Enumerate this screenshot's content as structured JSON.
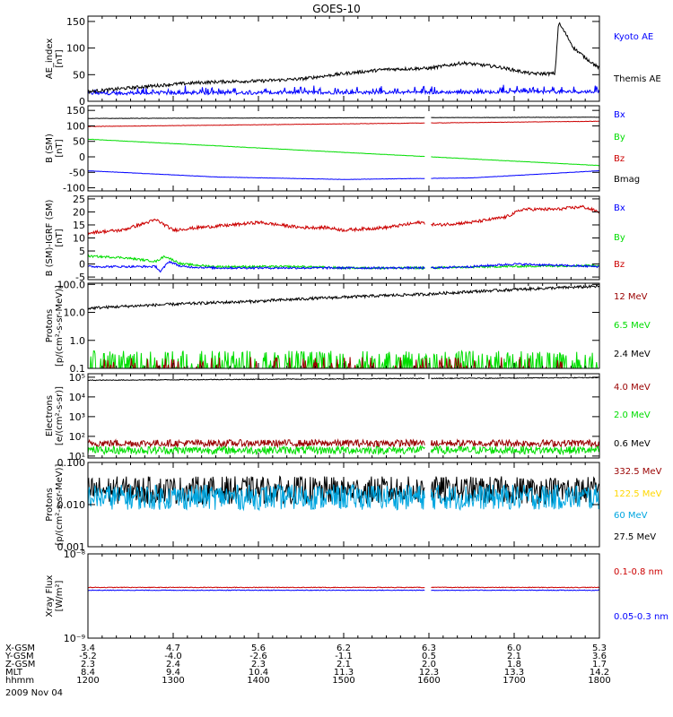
{
  "title": "GOES-10",
  "x_axis": {
    "ticks": [
      "1200",
      "1300",
      "1400",
      "1500",
      "1600",
      "1700",
      "1800"
    ],
    "rows": [
      {
        "label": "X-GSM",
        "values": [
          "3.4",
          "4.7",
          "5.6",
          "6.2",
          "6.3",
          "6.0",
          "5.3"
        ]
      },
      {
        "label": "Y-GSM",
        "values": [
          "-5.2",
          "-4.0",
          "-2.6",
          "-1.1",
          "0.5",
          "2.1",
          "3.6"
        ]
      },
      {
        "label": "Z-GSM",
        "values": [
          "2.3",
          "2.4",
          "2.3",
          "2.1",
          "2.0",
          "1.8",
          "1.7"
        ]
      },
      {
        "label": "MLT",
        "values": [
          "8.4",
          "9.4",
          "10.4",
          "11.3",
          "12.3",
          "13.3",
          "14.2"
        ]
      },
      {
        "label": "hhmm",
        "values": [
          "1200",
          "1300",
          "1400",
          "1500",
          "1600",
          "1700",
          "1800"
        ]
      }
    ],
    "date": "2009 Nov 04"
  },
  "colors": {
    "black": "#000000",
    "blue": "#0000ff",
    "red": "#cc0000",
    "green": "#00dd00",
    "darkred": "#990000",
    "yellow": "#ffd700",
    "cyan": "#00a6e0"
  },
  "chart_data": [
    {
      "type": "line",
      "ylabel": "AE_index\n[nT]",
      "scale": "linear",
      "ylim": [
        0,
        160
      ],
      "ticks": [
        {
          "v": 0,
          "t": "0"
        },
        {
          "v": 50,
          "t": "50"
        },
        {
          "v": 100,
          "t": "100"
        },
        {
          "v": 150,
          "t": "150"
        }
      ],
      "legend": [
        {
          "name": "Kyoto AE",
          "color": "#0000ff"
        },
        {
          "name": "Themis AE",
          "color": "#000000"
        }
      ],
      "series": [
        {
          "name": "Kyoto AE",
          "color": "#0000ff",
          "kind": "noise",
          "base": [
            [
              0,
              15
            ],
            [
              6,
              18
            ]
          ],
          "amp": 3,
          "spikes": 0.15
        },
        {
          "name": "Themis AE",
          "color": "#000000",
          "kind": "keys",
          "keys": [
            [
              0,
              18
            ],
            [
              0.4,
              24
            ],
            [
              0.7,
              28
            ],
            [
              1,
              32
            ],
            [
              1.3,
              35
            ],
            [
              1.6,
              37
            ],
            [
              2,
              38
            ],
            [
              2.5,
              42
            ],
            [
              3,
              52
            ],
            [
              3.5,
              60
            ],
            [
              4,
              62
            ],
            [
              4.4,
              72
            ],
            [
              4.8,
              65
            ],
            [
              5.2,
              52
            ],
            [
              5.48,
              52
            ],
            [
              5.52,
              148
            ],
            [
              5.6,
              128
            ],
            [
              5.7,
              100
            ],
            [
              5.85,
              80
            ],
            [
              6,
              62
            ]
          ],
          "amp": 3
        }
      ]
    },
    {
      "type": "line",
      "ylabel": "B (SM)\n[nT]",
      "scale": "linear",
      "ylim": [
        -110,
        165
      ],
      "ticks": [
        {
          "v": -100,
          "t": "-100"
        },
        {
          "v": -50,
          "t": "-50"
        },
        {
          "v": 0,
          "t": "0"
        },
        {
          "v": 50,
          "t": "50"
        },
        {
          "v": 100,
          "t": "100"
        },
        {
          "v": 150,
          "t": "150"
        }
      ],
      "legend": [
        {
          "name": "Bx",
          "color": "#0000ff"
        },
        {
          "name": "By",
          "color": "#00dd00"
        },
        {
          "name": "Bz",
          "color": "#cc0000"
        },
        {
          "name": "Bmag",
          "color": "#000000"
        }
      ],
      "gap": [
        3.95,
        4.02
      ],
      "series": [
        {
          "name": "Bmag",
          "color": "#000000",
          "kind": "noise",
          "base": [
            [
              0,
              124
            ],
            [
              6,
              128
            ]
          ],
          "amp": 0.6
        },
        {
          "name": "Bz",
          "color": "#cc0000",
          "kind": "noise",
          "base": [
            [
              0,
              98
            ],
            [
              6,
              115
            ]
          ],
          "amp": 0.6
        },
        {
          "name": "By",
          "color": "#00dd00",
          "kind": "noise",
          "base": [
            [
              0,
              57
            ],
            [
              6,
              -28
            ]
          ],
          "amp": 0.5
        },
        {
          "name": "Bx",
          "color": "#0000ff",
          "kind": "noise",
          "base": [
            [
              0,
              -45
            ],
            [
              1.5,
              -65
            ],
            [
              3,
              -73
            ],
            [
              4.5,
              -68
            ],
            [
              6,
              -45
            ]
          ],
          "amp": 0.5
        }
      ]
    },
    {
      "type": "line",
      "ylabel": "B (SM)-IGRF (SM)\n[nT]",
      "scale": "linear",
      "ylim": [
        -6,
        26
      ],
      "ticks": [
        {
          "v": -5,
          "t": "-5"
        },
        {
          "v": 0,
          "t": "0"
        },
        {
          "v": 5,
          "t": "5"
        },
        {
          "v": 10,
          "t": "10"
        },
        {
          "v": 15,
          "t": "15"
        },
        {
          "v": 20,
          "t": "20"
        },
        {
          "v": 25,
          "t": "25"
        }
      ],
      "legend": [
        {
          "name": "Bx",
          "color": "#0000ff"
        },
        {
          "name": "By",
          "color": "#00dd00"
        },
        {
          "name": "Bz",
          "color": "#cc0000"
        }
      ],
      "gap": [
        3.95,
        4.02
      ],
      "series": [
        {
          "name": "Bz",
          "color": "#cc0000",
          "kind": "keys",
          "keys": [
            [
              0,
              12
            ],
            [
              0.4,
              13
            ],
            [
              0.6,
              15
            ],
            [
              0.8,
              17
            ],
            [
              1,
              13
            ],
            [
              1.3,
              14
            ],
            [
              1.7,
              15
            ],
            [
              2,
              16
            ],
            [
              2.5,
              14
            ],
            [
              2.8,
              14
            ],
            [
              3,
              13
            ],
            [
              3.5,
              14
            ],
            [
              3.9,
              16
            ],
            [
              4.1,
              15
            ],
            [
              4.5,
              16
            ],
            [
              4.9,
              18
            ],
            [
              5.1,
              21
            ],
            [
              5.5,
              21
            ],
            [
              5.8,
              22
            ],
            [
              6,
              20
            ]
          ],
          "amp": 0.6
        },
        {
          "name": "By",
          "color": "#00dd00",
          "kind": "keys",
          "keys": [
            [
              0,
              3
            ],
            [
              0.4,
              2.5
            ],
            [
              0.8,
              1
            ],
            [
              0.9,
              3
            ],
            [
              1.1,
              0
            ],
            [
              1.5,
              -1
            ],
            [
              2.5,
              -1
            ],
            [
              3,
              -1.5
            ],
            [
              4,
              -1.5
            ],
            [
              4.8,
              -1
            ],
            [
              6,
              -0.5
            ]
          ],
          "amp": 0.4
        },
        {
          "name": "Bx",
          "color": "#0000ff",
          "kind": "keys",
          "keys": [
            [
              0,
              -1
            ],
            [
              0.8,
              -1
            ],
            [
              0.85,
              -3
            ],
            [
              0.95,
              1
            ],
            [
              1.1,
              -1
            ],
            [
              1.5,
              -1.5
            ],
            [
              3,
              -1.5
            ],
            [
              4,
              -1.5
            ],
            [
              4.5,
              -1
            ],
            [
              5,
              0
            ],
            [
              6,
              -1
            ]
          ],
          "amp": 0.4
        }
      ]
    },
    {
      "type": "line",
      "ylabel": "Protons\n[p/(cm²-s-sr-MeV)]",
      "scale": "log",
      "ylim": [
        0.1,
        110
      ],
      "ticks": [
        {
          "v": 0.1,
          "t": "0.1"
        },
        {
          "v": 1,
          "t": "1.0"
        },
        {
          "v": 10,
          "t": "10.0"
        },
        {
          "v": 100,
          "t": "100.0"
        }
      ],
      "legend": [
        {
          "name": "12 MeV",
          "color": "#990000"
        },
        {
          "name": "6.5 MeV",
          "color": "#00dd00"
        },
        {
          "name": "2.4 MeV",
          "color": "#000000"
        }
      ],
      "series": [
        {
          "name": "2.4 MeV",
          "color": "#000000",
          "kind": "noise",
          "base": [
            [
              0,
              14
            ],
            [
              2,
              25
            ],
            [
              4,
              45
            ],
            [
              6,
              85
            ]
          ],
          "amp": 0.05,
          "log": true
        },
        {
          "name": "6.5 MeV",
          "color": "#00dd00",
          "kind": "spiky",
          "floor": 0.1,
          "peak": 0.35,
          "density": 0.35
        },
        {
          "name": "12 MeV",
          "color": "#990000",
          "kind": "spiky",
          "floor": 0.1,
          "peak": 0.22,
          "density": 0.12
        }
      ]
    },
    {
      "type": "line",
      "ylabel": "Electrons\n[e/(cm²-s-sr)]",
      "scale": "log",
      "ylim": [
        8,
        150000
      ],
      "ticks": [
        {
          "v": 10,
          "t": "10¹"
        },
        {
          "v": 100,
          "t": "10²"
        },
        {
          "v": 1000,
          "t": "10³"
        },
        {
          "v": 10000,
          "t": "10⁴"
        },
        {
          "v": 100000,
          "t": "10⁵"
        }
      ],
      "legend": [
        {
          "name": "4.0 MeV",
          "color": "#990000"
        },
        {
          "name": "2.0 MeV",
          "color": "#00dd00"
        },
        {
          "name": "0.6 MeV",
          "color": "#000000"
        }
      ],
      "gap": [
        3.95,
        4.02
      ],
      "series": [
        {
          "name": "0.6 MeV",
          "color": "#000000",
          "kind": "noise",
          "base": [
            [
              0,
              70000
            ],
            [
              6,
              95000
            ]
          ],
          "amp": 0.02,
          "log": true
        },
        {
          "name": "4.0 MeV",
          "color": "#990000",
          "kind": "noise",
          "base": [
            [
              0,
              45
            ],
            [
              6,
              45
            ]
          ],
          "amp": 0.18,
          "log": true
        },
        {
          "name": "2.0 MeV",
          "color": "#00dd00",
          "kind": "noise",
          "base": [
            [
              0,
              20
            ],
            [
              6,
              20
            ]
          ],
          "amp": 0.2,
          "log": true
        }
      ]
    },
    {
      "type": "line",
      "ylabel": "Protons\n[p/(cm²-s-sr-MeV)]",
      "scale": "log",
      "ylim": [
        0.001,
        0.1
      ],
      "ticks": [
        {
          "v": 0.001,
          "t": "0.001"
        },
        {
          "v": 0.01,
          "t": "0.010"
        },
        {
          "v": 0.1,
          "t": "0.100"
        }
      ],
      "legend": [
        {
          "name": "332.5 MeV",
          "color": "#990000"
        },
        {
          "name": "122.5 MeV",
          "color": "#ffd700"
        },
        {
          "name": "60 MeV",
          "color": "#00a6e0"
        },
        {
          "name": "27.5 MeV",
          "color": "#000000"
        }
      ],
      "gap": [
        3.95,
        4.02
      ],
      "series": [
        {
          "name": "27.5 MeV",
          "color": "#000000",
          "kind": "noise",
          "base": [
            [
              0,
              0.022
            ],
            [
              6,
              0.022
            ]
          ],
          "amp": 0.33,
          "log": true
        },
        {
          "name": "60 MeV",
          "color": "#00a6e0",
          "kind": "noise",
          "base": [
            [
              0,
              0.015
            ],
            [
              6,
              0.015
            ]
          ],
          "amp": 0.3,
          "log": true
        }
      ]
    },
    {
      "type": "line",
      "ylabel": "Xray Flux\n[W/m²]",
      "scale": "log",
      "ylim": [
        1e-09,
        1e-08
      ],
      "ticks": [
        {
          "v": 1e-09,
          "t": "10⁻⁹"
        },
        {
          "v": 1e-08,
          "t": "10⁻⁸"
        }
      ],
      "legend": [
        {
          "name": "0.1-0.8 nm",
          "color": "#cc0000"
        },
        {
          "name": "0.05-0.3 nm",
          "color": "#0000ff"
        }
      ],
      "gap": [
        3.95,
        4.02
      ],
      "series": [
        {
          "name": "0.1-0.8 nm",
          "color": "#cc0000",
          "kind": "noise",
          "base": [
            [
              0,
              4e-09
            ],
            [
              6,
              4e-09
            ]
          ],
          "amp": 0.004,
          "log": true
        },
        {
          "name": "0.05-0.3 nm",
          "color": "#0000ff",
          "kind": "noise",
          "base": [
            [
              0,
              3.7e-09
            ],
            [
              6,
              3.7e-09
            ]
          ],
          "amp": 0.004,
          "log": true
        }
      ]
    }
  ]
}
